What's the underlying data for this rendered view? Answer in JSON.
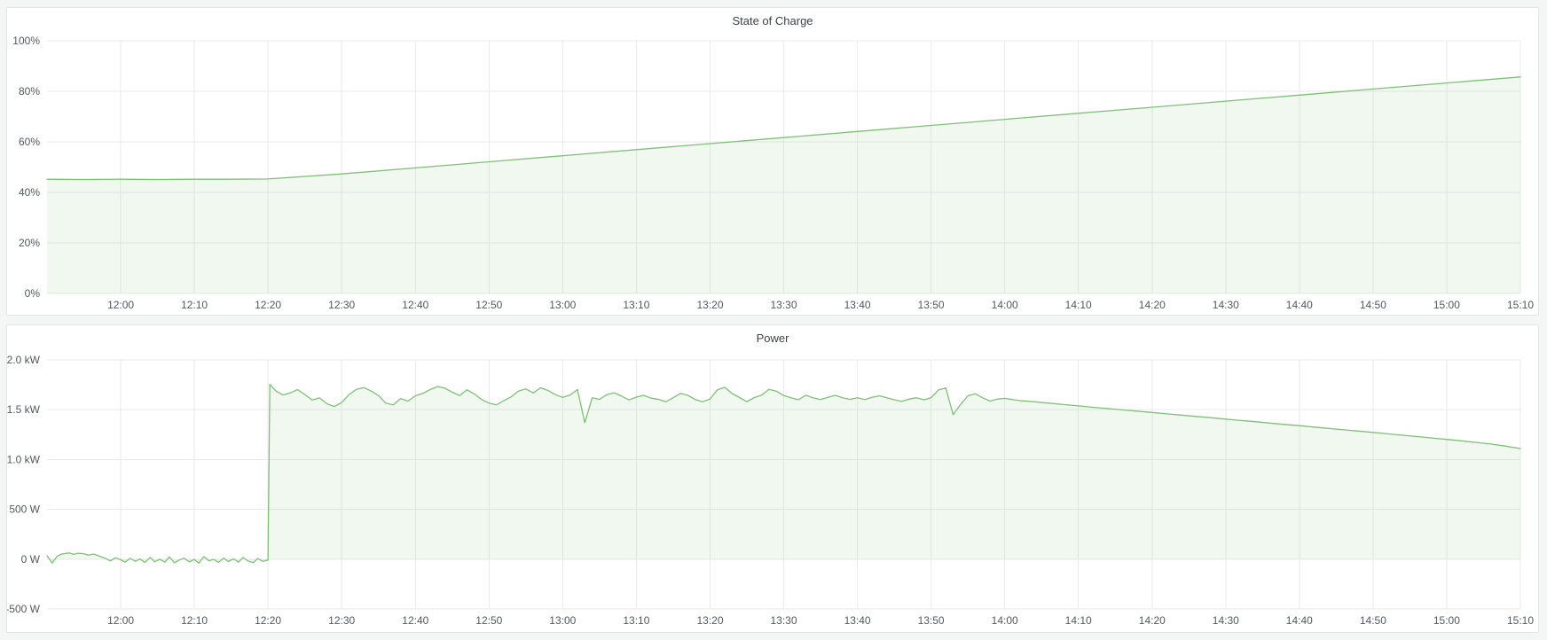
{
  "theme": {
    "page_bg": "#f4f5f5",
    "panel_bg": "#ffffff",
    "panel_border": "#e3e6e6",
    "grid_color": "#e8eaeb",
    "line_color": "#7fc077",
    "fill_color": "rgba(115,191,105,0.10)",
    "tick_text": "#53575e",
    "title_text": "#3d4248"
  },
  "chart_data": [
    {
      "type": "area",
      "title": "State of Charge",
      "unit": "percent",
      "grid": true,
      "legend": "none",
      "ylim": [
        0,
        100
      ],
      "xlim_minutes": [
        0,
        200
      ],
      "x_start_time": "11:50",
      "x_tick_minutes": [
        10,
        20,
        30,
        40,
        50,
        60,
        70,
        80,
        90,
        100,
        110,
        120,
        130,
        140,
        150,
        160,
        170,
        180,
        190,
        200
      ],
      "x_tick_labels": [
        "12:00",
        "12:10",
        "12:20",
        "12:30",
        "12:40",
        "12:50",
        "13:00",
        "13:10",
        "13:20",
        "13:30",
        "13:40",
        "13:50",
        "14:00",
        "14:10",
        "14:20",
        "14:30",
        "14:40",
        "14:50",
        "15:00",
        "15:10"
      ],
      "y_tick_values": [
        100,
        80,
        60,
        40,
        20,
        0
      ],
      "y_tick_labels": [
        "100%",
        "80%",
        "60%",
        "40%",
        "20%",
        "0%"
      ],
      "points": [
        [
          0,
          45.2
        ],
        [
          5,
          45.1
        ],
        [
          10,
          45.2
        ],
        [
          15,
          45.1
        ],
        [
          20,
          45.2
        ],
        [
          25,
          45.2
        ],
        [
          30,
          45.3
        ],
        [
          40,
          47.3
        ],
        [
          50,
          49.7
        ],
        [
          60,
          52.1
        ],
        [
          70,
          54.5
        ],
        [
          80,
          56.9
        ],
        [
          90,
          59.3
        ],
        [
          100,
          61.7
        ],
        [
          110,
          64.1
        ],
        [
          120,
          66.5
        ],
        [
          130,
          68.9
        ],
        [
          140,
          71.3
        ],
        [
          150,
          73.7
        ],
        [
          160,
          76.1
        ],
        [
          170,
          78.5
        ],
        [
          180,
          80.9
        ],
        [
          190,
          83.3
        ],
        [
          200,
          85.7
        ]
      ]
    },
    {
      "type": "area",
      "title": "Power",
      "unit": "watt",
      "grid": true,
      "legend": "none",
      "ylim": [
        -500,
        2000
      ],
      "xlim_minutes": [
        0,
        200
      ],
      "x_start_time": "11:50",
      "x_tick_minutes": [
        10,
        20,
        30,
        40,
        50,
        60,
        70,
        80,
        90,
        100,
        110,
        120,
        130,
        140,
        150,
        160,
        170,
        180,
        190,
        200
      ],
      "x_tick_labels": [
        "12:00",
        "12:10",
        "12:20",
        "12:30",
        "12:40",
        "12:50",
        "13:00",
        "13:10",
        "13:20",
        "13:30",
        "13:40",
        "13:50",
        "14:00",
        "14:10",
        "14:20",
        "14:30",
        "14:40",
        "14:50",
        "15:00",
        "15:10"
      ],
      "y_tick_values": [
        2000,
        1500,
        1000,
        500,
        0,
        -500
      ],
      "y_tick_labels": [
        "2.0 kW",
        "1.5 kW",
        "1.0 kW",
        "500 W",
        "0 W",
        "-500 W"
      ],
      "points": [
        [
          0,
          35
        ],
        [
          0.7,
          -38
        ],
        [
          1.4,
          30
        ],
        [
          2,
          52
        ],
        [
          3,
          62
        ],
        [
          3.6,
          48
        ],
        [
          4.2,
          60
        ],
        [
          5,
          55
        ],
        [
          5.6,
          40
        ],
        [
          6.3,
          52
        ],
        [
          7,
          34
        ],
        [
          8,
          6
        ],
        [
          8.6,
          -18
        ],
        [
          9.3,
          14
        ],
        [
          10,
          -6
        ],
        [
          10.6,
          -30
        ],
        [
          11.3,
          8
        ],
        [
          12,
          -22
        ],
        [
          12.6,
          2
        ],
        [
          13.3,
          -34
        ],
        [
          14,
          18
        ],
        [
          14.6,
          -26
        ],
        [
          15.3,
          -2
        ],
        [
          16,
          -30
        ],
        [
          16.6,
          22
        ],
        [
          17.3,
          -36
        ],
        [
          18,
          -8
        ],
        [
          18.6,
          10
        ],
        [
          19.3,
          -28
        ],
        [
          20,
          -4
        ],
        [
          20.6,
          -40
        ],
        [
          21.3,
          26
        ],
        [
          22,
          -18
        ],
        [
          22.6,
          -2
        ],
        [
          23.3,
          -32
        ],
        [
          24,
          12
        ],
        [
          24.6,
          -24
        ],
        [
          25.3,
          4
        ],
        [
          26,
          -30
        ],
        [
          26.6,
          16
        ],
        [
          27.3,
          -20
        ],
        [
          28,
          -36
        ],
        [
          28.6,
          6
        ],
        [
          29.3,
          -22
        ],
        [
          30,
          -10
        ],
        [
          30.25,
          1755
        ],
        [
          31,
          1692
        ],
        [
          32,
          1648
        ],
        [
          33,
          1668
        ],
        [
          34,
          1702
        ],
        [
          35,
          1652
        ],
        [
          36,
          1598
        ],
        [
          37,
          1618
        ],
        [
          38,
          1560
        ],
        [
          39,
          1532
        ],
        [
          40,
          1572
        ],
        [
          41,
          1652
        ],
        [
          42,
          1705
        ],
        [
          43,
          1722
        ],
        [
          44,
          1688
        ],
        [
          45,
          1642
        ],
        [
          46,
          1566
        ],
        [
          47,
          1548
        ],
        [
          48,
          1612
        ],
        [
          49,
          1586
        ],
        [
          50,
          1640
        ],
        [
          51,
          1664
        ],
        [
          52,
          1702
        ],
        [
          53,
          1732
        ],
        [
          54,
          1716
        ],
        [
          55,
          1676
        ],
        [
          56,
          1642
        ],
        [
          57,
          1700
        ],
        [
          58,
          1658
        ],
        [
          59,
          1602
        ],
        [
          60,
          1566
        ],
        [
          61,
          1548
        ],
        [
          62,
          1592
        ],
        [
          63,
          1628
        ],
        [
          64,
          1688
        ],
        [
          65,
          1708
        ],
        [
          66,
          1668
        ],
        [
          67,
          1720
        ],
        [
          68,
          1694
        ],
        [
          69,
          1652
        ],
        [
          70,
          1624
        ],
        [
          71,
          1648
        ],
        [
          72,
          1702
        ],
        [
          73,
          1370
        ],
        [
          74,
          1620
        ],
        [
          75,
          1604
        ],
        [
          76,
          1652
        ],
        [
          77,
          1670
        ],
        [
          78,
          1636
        ],
        [
          79,
          1598
        ],
        [
          80,
          1626
        ],
        [
          81,
          1644
        ],
        [
          82,
          1616
        ],
        [
          83,
          1604
        ],
        [
          84,
          1580
        ],
        [
          85,
          1620
        ],
        [
          86,
          1664
        ],
        [
          87,
          1644
        ],
        [
          88,
          1602
        ],
        [
          89,
          1580
        ],
        [
          90,
          1608
        ],
        [
          91,
          1700
        ],
        [
          92,
          1724
        ],
        [
          93,
          1662
        ],
        [
          94,
          1622
        ],
        [
          95,
          1580
        ],
        [
          96,
          1622
        ],
        [
          97,
          1646
        ],
        [
          98,
          1704
        ],
        [
          99,
          1686
        ],
        [
          100,
          1642
        ],
        [
          101,
          1620
        ],
        [
          102,
          1600
        ],
        [
          103,
          1646
        ],
        [
          104,
          1618
        ],
        [
          105,
          1602
        ],
        [
          106,
          1624
        ],
        [
          107,
          1644
        ],
        [
          108,
          1620
        ],
        [
          109,
          1604
        ],
        [
          110,
          1620
        ],
        [
          111,
          1602
        ],
        [
          112,
          1624
        ],
        [
          113,
          1640
        ],
        [
          114,
          1620
        ],
        [
          115,
          1600
        ],
        [
          116,
          1584
        ],
        [
          117,
          1606
        ],
        [
          118,
          1620
        ],
        [
          119,
          1600
        ],
        [
          120,
          1620
        ],
        [
          121,
          1698
        ],
        [
          122,
          1718
        ],
        [
          123,
          1450
        ],
        [
          124,
          1552
        ],
        [
          125,
          1640
        ],
        [
          126,
          1660
        ],
        [
          127,
          1620
        ],
        [
          128,
          1586
        ],
        [
          129,
          1606
        ],
        [
          130,
          1614
        ],
        [
          131,
          1602
        ],
        [
          132,
          1592
        ],
        [
          134,
          1580
        ],
        [
          136,
          1566
        ],
        [
          138,
          1552
        ],
        [
          140,
          1538
        ],
        [
          142,
          1524
        ],
        [
          144,
          1512
        ],
        [
          146,
          1498
        ],
        [
          148,
          1486
        ],
        [
          150,
          1472
        ],
        [
          152,
          1458
        ],
        [
          154,
          1446
        ],
        [
          156,
          1432
        ],
        [
          158,
          1420
        ],
        [
          160,
          1406
        ],
        [
          162,
          1392
        ],
        [
          164,
          1380
        ],
        [
          166,
          1366
        ],
        [
          168,
          1352
        ],
        [
          170,
          1340
        ],
        [
          172,
          1326
        ],
        [
          174,
          1312
        ],
        [
          176,
          1298
        ],
        [
          178,
          1286
        ],
        [
          180,
          1272
        ],
        [
          182,
          1258
        ],
        [
          184,
          1244
        ],
        [
          186,
          1230
        ],
        [
          188,
          1216
        ],
        [
          190,
          1202
        ],
        [
          192,
          1188
        ],
        [
          194,
          1172
        ],
        [
          196,
          1156
        ],
        [
          198,
          1134
        ],
        [
          200,
          1110
        ]
      ]
    }
  ]
}
